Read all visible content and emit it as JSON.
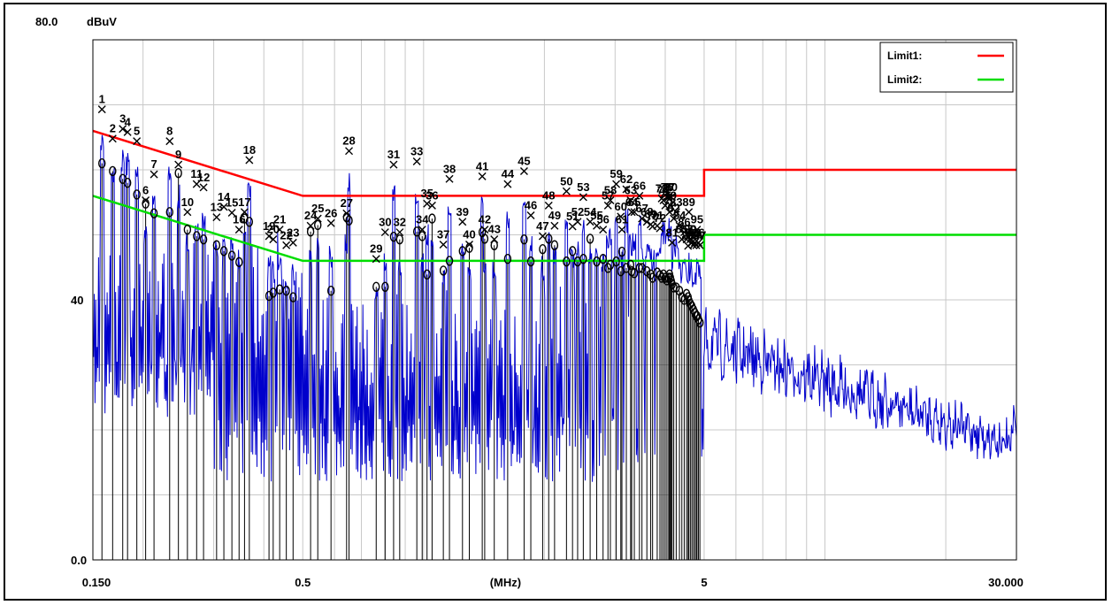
{
  "chart_data": {
    "type": "line",
    "y_top_label": "80.0",
    "y_unit": "dBuV",
    "y_tick_labels": [
      "40",
      "0.0"
    ],
    "x_tick_labels": [
      "0.150",
      "0.5",
      "(MHz)",
      "5",
      "30.000"
    ],
    "x_scale": "log",
    "xlim_mhz": [
      0.15,
      30
    ],
    "ylim": [
      0,
      80
    ],
    "grid": true,
    "legend_position": "top-right",
    "legend": [
      {
        "name": "Limit1:",
        "color": "#ff0000"
      },
      {
        "name": "Limit2:",
        "color": "#00dd00"
      }
    ],
    "limits": [
      {
        "name": "Limit1",
        "points": [
          [
            0.15,
            66
          ],
          [
            0.5,
            56
          ],
          [
            5,
            56
          ],
          [
            5,
            60
          ],
          [
            30,
            60
          ]
        ]
      },
      {
        "name": "Limit2",
        "points": [
          [
            0.15,
            56
          ],
          [
            0.5,
            46
          ],
          [
            5,
            46
          ],
          [
            5,
            50
          ],
          [
            30,
            50
          ]
        ]
      }
    ],
    "markers": [
      {
        "n": 1,
        "f": 0.158,
        "qp": 69.3,
        "avg": 61.0
      },
      {
        "n": 2,
        "f": 0.168,
        "qp": 64.8,
        "avg": 59.8
      },
      {
        "n": 3,
        "f": 0.178,
        "qp": 66.3,
        "avg": 58.6
      },
      {
        "n": 4,
        "f": 0.183,
        "qp": 65.8,
        "avg": 58.0
      },
      {
        "n": 5,
        "f": 0.193,
        "qp": 64.4,
        "avg": 56.2
      },
      {
        "n": 6,
        "f": 0.203,
        "qp": 55.3,
        "avg": 54.8
      },
      {
        "n": 7,
        "f": 0.213,
        "qp": 59.3,
        "avg": 53.3
      },
      {
        "n": 8,
        "f": 0.233,
        "qp": 64.4,
        "avg": 53.5
      },
      {
        "n": 9,
        "f": 0.245,
        "qp": 60.8,
        "avg": 59.5
      },
      {
        "n": 10,
        "f": 0.258,
        "qp": 53.5,
        "avg": 50.8
      },
      {
        "n": 11,
        "f": 0.272,
        "qp": 57.8,
        "avg": 49.8
      },
      {
        "n": 12,
        "f": 0.283,
        "qp": 57.3,
        "avg": 49.3
      },
      {
        "n": 13,
        "f": 0.305,
        "qp": 52.7,
        "avg": 48.4
      },
      {
        "n": 14,
        "f": 0.318,
        "qp": 54.3,
        "avg": 47.5
      },
      {
        "n": 15,
        "f": 0.333,
        "qp": 53.4,
        "avg": 46.8
      },
      {
        "n": 16,
        "f": 0.347,
        "qp": 50.8,
        "avg": 45.8
      },
      {
        "n": 17,
        "f": 0.358,
        "qp": 53.5,
        "avg": 52.5
      },
      {
        "n": 18,
        "f": 0.368,
        "qp": 61.5,
        "avg": 52.0
      },
      {
        "n": 19,
        "f": 0.412,
        "qp": 49.8,
        "avg": 40.6
      },
      {
        "n": 20,
        "f": 0.422,
        "qp": 49.3,
        "avg": 41.1
      },
      {
        "n": 21,
        "f": 0.438,
        "qp": 50.8,
        "avg": 41.6
      },
      {
        "n": 22,
        "f": 0.455,
        "qp": 48.4,
        "avg": 41.4
      },
      {
        "n": 23,
        "f": 0.473,
        "qp": 48.8,
        "avg": 40.4
      },
      {
        "n": 24,
        "f": 0.523,
        "qp": 51.4,
        "avg": 50.5
      },
      {
        "n": 25,
        "f": 0.545,
        "qp": 52.5,
        "avg": 51.5
      },
      {
        "n": 26,
        "f": 0.588,
        "qp": 51.8,
        "avg": 41.4
      },
      {
        "n": 27,
        "f": 0.643,
        "qp": 53.3,
        "avg": 52.7
      },
      {
        "n": 28,
        "f": 0.652,
        "qp": 62.9,
        "avg": 52.2
      },
      {
        "n": 29,
        "f": 0.762,
        "qp": 46.3,
        "avg": 42.0
      },
      {
        "n": 30,
        "f": 0.802,
        "qp": 50.4,
        "avg": 42.0
      },
      {
        "n": 31,
        "f": 0.842,
        "qp": 60.8,
        "avg": 49.7
      },
      {
        "n": 32,
        "f": 0.872,
        "qp": 50.4,
        "avg": 49.3
      },
      {
        "n": 33,
        "f": 0.962,
        "qp": 61.3,
        "avg": 50.5
      },
      {
        "n": 34,
        "f": 0.992,
        "qp": 50.8,
        "avg": 49.8
      },
      {
        "n": 35,
        "f": 1.02,
        "qp": 54.8,
        "avg": 43.9
      },
      {
        "n": 36,
        "f": 1.05,
        "qp": 54.5,
        "avg": 52.5
      },
      {
        "n": 37,
        "f": 1.12,
        "qp": 48.5,
        "avg": 44.5
      },
      {
        "n": 38,
        "f": 1.16,
        "qp": 58.6,
        "avg": 46.0
      },
      {
        "n": 39,
        "f": 1.25,
        "qp": 52.0,
        "avg": 47.5
      },
      {
        "n": 40,
        "f": 1.3,
        "qp": 48.5,
        "avg": 48.0
      },
      {
        "n": 41,
        "f": 1.4,
        "qp": 59.0,
        "avg": 50.4
      },
      {
        "n": 42,
        "f": 1.42,
        "qp": 50.8,
        "avg": 49.4
      },
      {
        "n": 43,
        "f": 1.5,
        "qp": 49.3,
        "avg": 48.4
      },
      {
        "n": 44,
        "f": 1.62,
        "qp": 57.8,
        "avg": 46.3
      },
      {
        "n": 45,
        "f": 1.78,
        "qp": 59.8,
        "avg": 49.3
      },
      {
        "n": 46,
        "f": 1.85,
        "qp": 53.0,
        "avg": 45.9
      },
      {
        "n": 47,
        "f": 1.98,
        "qp": 49.8,
        "avg": 47.8
      },
      {
        "n": 48,
        "f": 2.05,
        "qp": 54.5,
        "avg": 49.4
      },
      {
        "n": 49,
        "f": 2.12,
        "qp": 51.4,
        "avg": 48.4
      },
      {
        "n": 50,
        "f": 2.27,
        "qp": 56.7,
        "avg": 45.9
      },
      {
        "n": 51,
        "f": 2.35,
        "qp": 51.3,
        "avg": 47.5
      },
      {
        "n": 52,
        "f": 2.42,
        "qp": 52.0,
        "avg": 45.9
      },
      {
        "n": 53,
        "f": 2.5,
        "qp": 55.8,
        "avg": 46.3
      },
      {
        "n": 54,
        "f": 2.6,
        "qp": 52.0,
        "avg": 49.4
      },
      {
        "n": 55,
        "f": 2.7,
        "qp": 51.4,
        "avg": 45.9
      },
      {
        "n": 56,
        "f": 2.8,
        "qp": 50.8,
        "avg": 46.3
      },
      {
        "n": 57,
        "f": 2.88,
        "qp": 54.5,
        "avg": 44.9
      },
      {
        "n": 58,
        "f": 2.92,
        "qp": 55.3,
        "avg": 45.4
      },
      {
        "n": 59,
        "f": 3.02,
        "qp": 57.8,
        "avg": 45.9
      },
      {
        "n": 60,
        "f": 3.1,
        "qp": 52.8,
        "avg": 44.4
      },
      {
        "n": 61,
        "f": 3.12,
        "qp": 50.8,
        "avg": 47.4
      },
      {
        "n": 62,
        "f": 3.2,
        "qp": 57.0,
        "avg": 44.9
      },
      {
        "n": 63,
        "f": 3.28,
        "qp": 55.3,
        "avg": 45.4
      },
      {
        "n": 64,
        "f": 3.3,
        "qp": 53.5,
        "avg": 44.4
      },
      {
        "n": 65,
        "f": 3.35,
        "qp": 53.5,
        "avg": 44.1
      },
      {
        "n": 66,
        "f": 3.45,
        "qp": 56.0,
        "avg": 44.9
      },
      {
        "n": 67,
        "f": 3.5,
        "qp": 52.5,
        "avg": 44.9
      },
      {
        "n": 68,
        "f": 3.6,
        "qp": 52.0,
        "avg": 44.4
      },
      {
        "n": 69,
        "f": 3.68,
        "qp": 51.6,
        "avg": 43.9
      },
      {
        "n": 70,
        "f": 3.72,
        "qp": 51.3,
        "avg": 43.4
      },
      {
        "n": 71,
        "f": 3.82,
        "qp": 51.4,
        "avg": 44.2
      },
      {
        "n": 72,
        "f": 3.88,
        "qp": 51.0,
        "avg": 43.8
      },
      {
        "n": 73,
        "f": 3.92,
        "qp": 55.6,
        "avg": 43.4
      },
      {
        "n": 74,
        "f": 3.96,
        "qp": 55.3,
        "avg": 43.9
      },
      {
        "n": 75,
        "f": 4.0,
        "qp": 54.5,
        "avg": 43.4
      },
      {
        "n": 76,
        "f": 4.04,
        "qp": 55.8,
        "avg": 43.0
      },
      {
        "n": 77,
        "f": 4.08,
        "qp": 55.8,
        "avg": 43.4
      },
      {
        "n": 78,
        "f": 4.1,
        "qp": 53.5,
        "avg": 43.9
      },
      {
        "n": 79,
        "f": 4.12,
        "qp": 54.5,
        "avg": 43.4
      },
      {
        "n": 80,
        "f": 4.14,
        "qp": 55.8,
        "avg": 42.9
      },
      {
        "n": 81,
        "f": 4.16,
        "qp": 48.8,
        "avg": 42.4
      },
      {
        "n": 82,
        "f": 4.2,
        "qp": 52.5,
        "avg": 41.9
      },
      {
        "n": 83,
        "f": 4.26,
        "qp": 53.5,
        "avg": 41.9
      },
      {
        "n": 84,
        "f": 4.34,
        "qp": 51.4,
        "avg": 41.4
      },
      {
        "n": 85,
        "f": 4.4,
        "qp": 49.3,
        "avg": 40.4
      },
      {
        "n": 86,
        "f": 4.46,
        "qp": 50.4,
        "avg": 40.0
      },
      {
        "n": 87,
        "f": 4.52,
        "qp": 49.3,
        "avg": 40.9
      },
      {
        "n": 88,
        "f": 4.56,
        "qp": 48.3,
        "avg": 40.4
      },
      {
        "n": 89,
        "f": 4.58,
        "qp": 53.5,
        "avg": 39.9
      },
      {
        "n": 90,
        "f": 4.62,
        "qp": 49.3,
        "avg": 39.4
      },
      {
        "n": 91,
        "f": 4.66,
        "qp": 48.8,
        "avg": 39.0
      },
      {
        "n": 92,
        "f": 4.7,
        "qp": 48.4,
        "avg": 38.5
      },
      {
        "n": 93,
        "f": 4.74,
        "qp": 48.8,
        "avg": 38.0
      },
      {
        "n": 94,
        "f": 4.78,
        "qp": 48.4,
        "avg": 37.5
      },
      {
        "n": 95,
        "f": 4.8,
        "qp": 50.8,
        "avg": 37.5
      },
      {
        "n": 96,
        "f": 4.84,
        "qp": 48.8,
        "avg": 37.0
      },
      {
        "n": 97,
        "f": 4.88,
        "qp": 48.4,
        "avg": 36.5
      }
    ],
    "spectrum_color": "#0000cc",
    "limit1_color": "#ff0000",
    "limit2_color": "#00dd00",
    "stem_color": "#000000"
  }
}
